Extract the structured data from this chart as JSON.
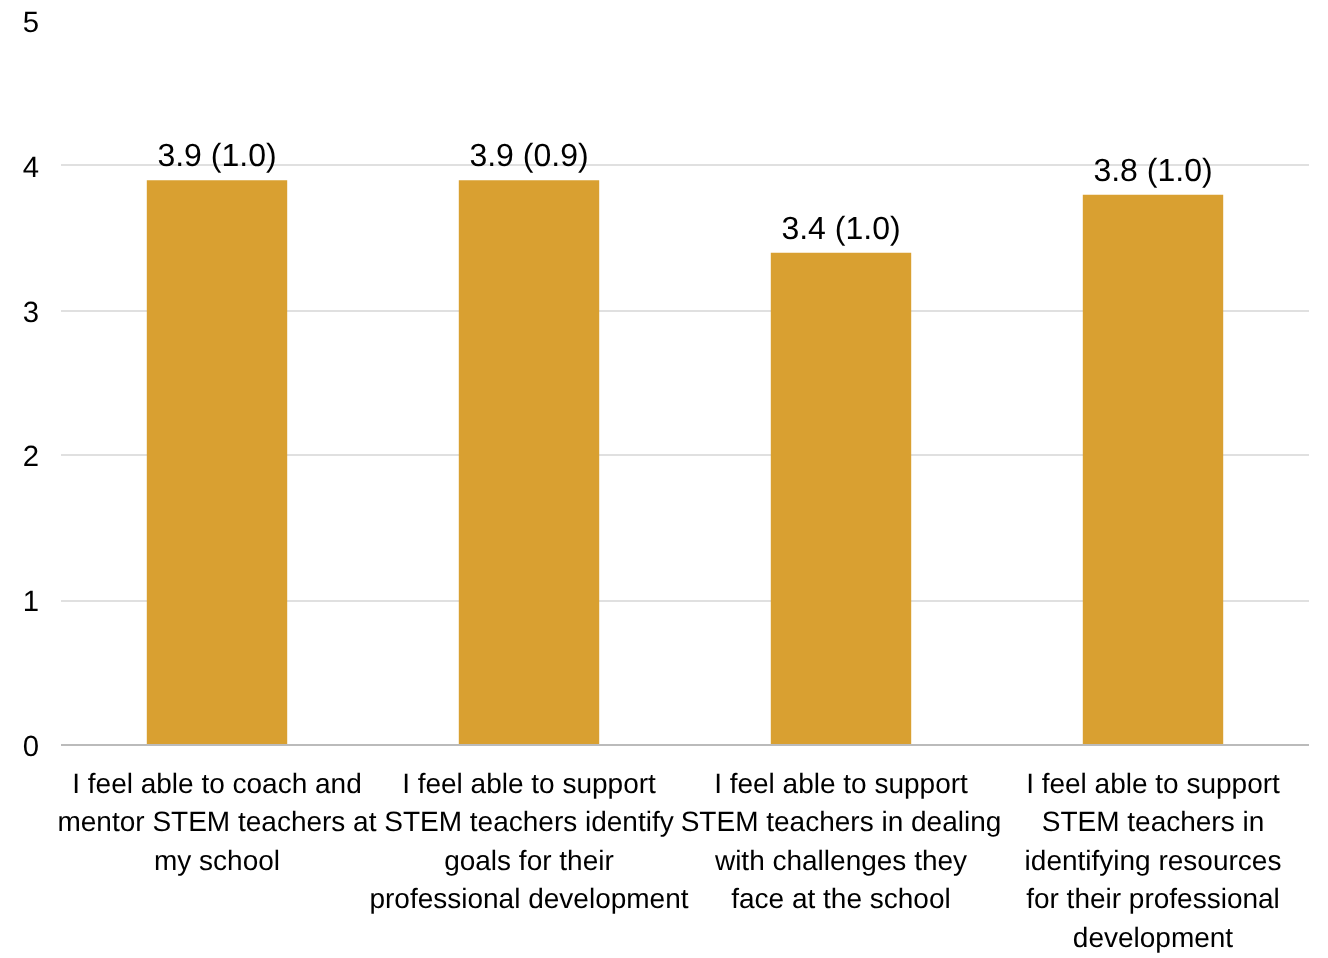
{
  "chart_data": {
    "type": "bar",
    "categories": [
      "I feel able to coach and mentor STEM teachers at my school",
      "I feel able to support STEM teachers identify goals for their professional development",
      "I feel able to support STEM teachers in dealing with challenges they face at the school",
      "I feel able to support STEM teachers in identifying resources for their professional development"
    ],
    "values": [
      3.9,
      3.9,
      3.4,
      3.8
    ],
    "value_labels": [
      "3.9 (1.0)",
      "3.9 (0.9)",
      "3.4 (1.0)",
      "3.8 (1.0)"
    ],
    "color": "#d9a031",
    "ylim": [
      0,
      5
    ],
    "yticks": [
      0,
      1,
      2,
      3,
      4,
      5
    ],
    "grid": "y"
  }
}
